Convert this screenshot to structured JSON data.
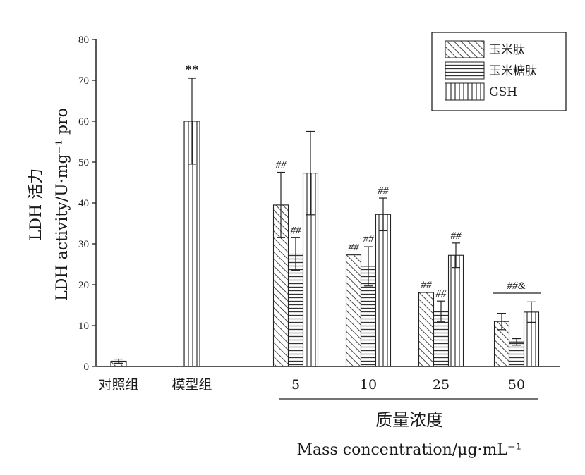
{
  "chart_data": {
    "type": "bar",
    "ylabel_line1": "LDH 活力",
    "ylabel_line2": "LDH activity/U·mg⁻¹ pro",
    "xlabel_line1": "质量浓度",
    "xlabel_line2": "Mass concentration/μg·mL⁻¹",
    "ylim": [
      0,
      80
    ],
    "yticks": [
      "0",
      "10",
      "20",
      "30",
      "40",
      "50",
      "60",
      "70",
      "80"
    ],
    "categories": [
      "对照组",
      "模型组",
      "5",
      "10",
      "25",
      "50"
    ],
    "legend": {
      "position": "top-right",
      "entries": [
        "玉米肽",
        "玉米糖肽",
        "GSH"
      ]
    },
    "groups": [
      {
        "category": "对照组",
        "bars": [
          {
            "series": "control",
            "value": 1.3,
            "error": 0.5,
            "annotation": ""
          }
        ]
      },
      {
        "category": "模型组",
        "bars": [
          {
            "series": "model",
            "value": 60,
            "error": 10.5,
            "annotation": "**"
          }
        ]
      },
      {
        "category": "5",
        "bars": [
          {
            "series": "玉米肽",
            "value": 39.5,
            "error": 8,
            "annotation": "##"
          },
          {
            "series": "玉米糖肽",
            "value": 27.5,
            "error": 4,
            "annotation": "##"
          },
          {
            "series": "GSH",
            "value": 47.3,
            "error": 10.2,
            "annotation": ""
          }
        ]
      },
      {
        "category": "10",
        "bars": [
          {
            "series": "玉米肽",
            "value": 27.3,
            "error": 0,
            "annotation": "##"
          },
          {
            "series": "玉米糖肽",
            "value": 24.5,
            "error": 4.8,
            "annotation": "##"
          },
          {
            "series": "GSH",
            "value": 37.2,
            "error": 4,
            "annotation": "##"
          }
        ]
      },
      {
        "category": "25",
        "bars": [
          {
            "series": "玉米肽",
            "value": 18.1,
            "error": 0,
            "annotation": "##"
          },
          {
            "series": "玉米糖肽",
            "value": 13.5,
            "error": 2.5,
            "annotation": "##"
          },
          {
            "series": "GSH",
            "value": 27.2,
            "error": 3,
            "annotation": "##"
          }
        ]
      },
      {
        "category": "50",
        "bars": [
          {
            "series": "玉米肽",
            "value": 11,
            "error": 2,
            "annotation": ""
          },
          {
            "series": "玉米糖肽",
            "value": 6,
            "error": 0.8,
            "annotation": ""
          },
          {
            "series": "GSH",
            "value": 13.3,
            "error": 2.5,
            "annotation": ""
          }
        ]
      }
    ],
    "group_annotation_50": "##&"
  }
}
